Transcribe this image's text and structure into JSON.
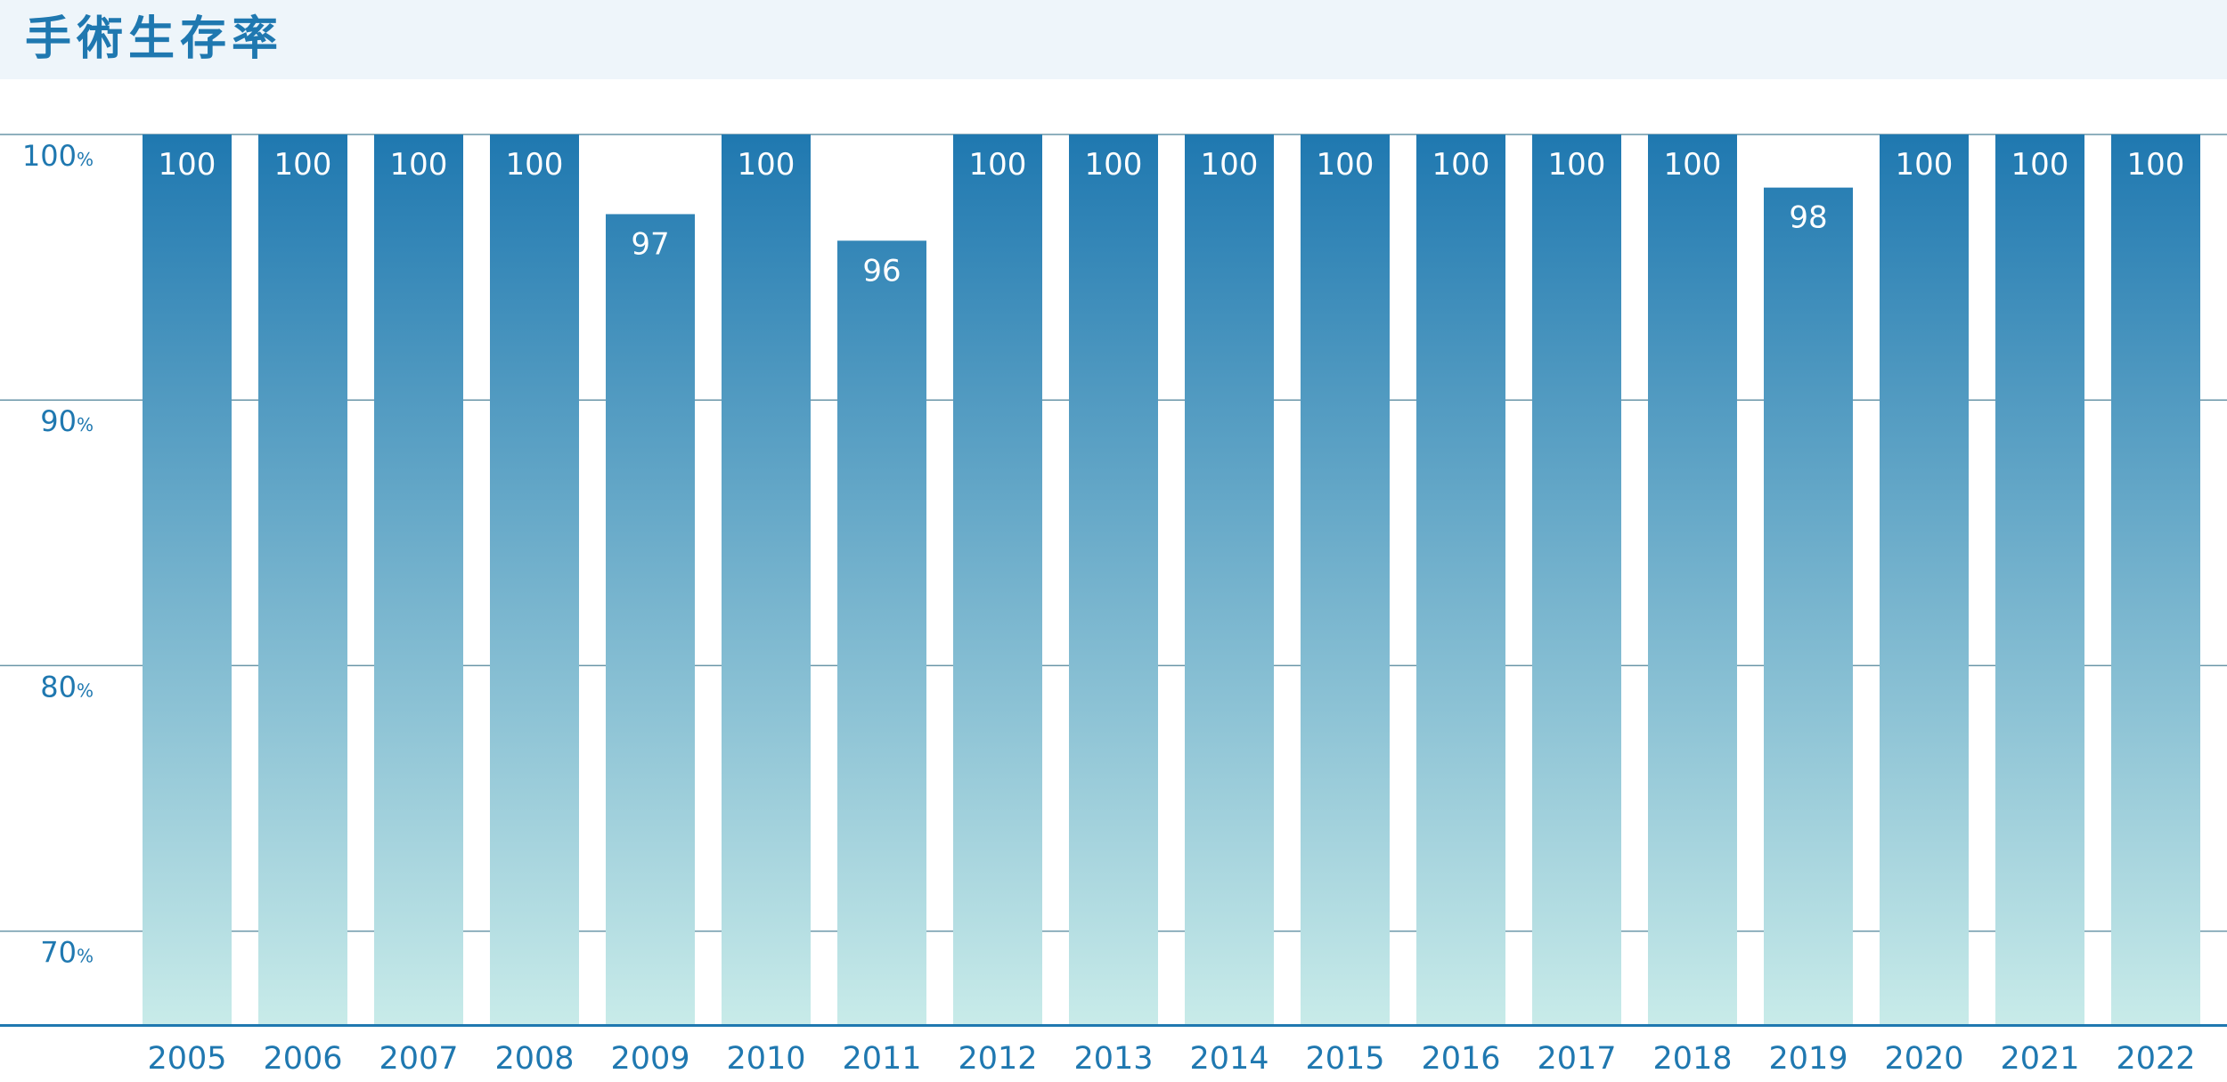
{
  "header": {
    "title": "手術生存率"
  },
  "colors": {
    "accent": "#1f78b0",
    "bar_top": "#1f78b0",
    "bar_bottom": "#c8ebe9",
    "grid": "#6a96a8",
    "header_bg": "#eef5fa"
  },
  "chart_data": {
    "type": "bar",
    "title": "手術生存率",
    "xlabel": "",
    "ylabel": "",
    "unit": "%",
    "categories": [
      "2005",
      "2006",
      "2007",
      "2008",
      "2009",
      "2010",
      "2011",
      "2012",
      "2013",
      "2014",
      "2015",
      "2016",
      "2017",
      "2018",
      "2019",
      "2020",
      "2021",
      "2022"
    ],
    "values": [
      100,
      100,
      100,
      100,
      97,
      100,
      96,
      100,
      100,
      100,
      100,
      100,
      100,
      100,
      98,
      100,
      100,
      100
    ],
    "yticks": [
      70,
      80,
      90,
      100
    ],
    "ylim": [
      66.5,
      100
    ],
    "grid": true,
    "legend": "none"
  }
}
